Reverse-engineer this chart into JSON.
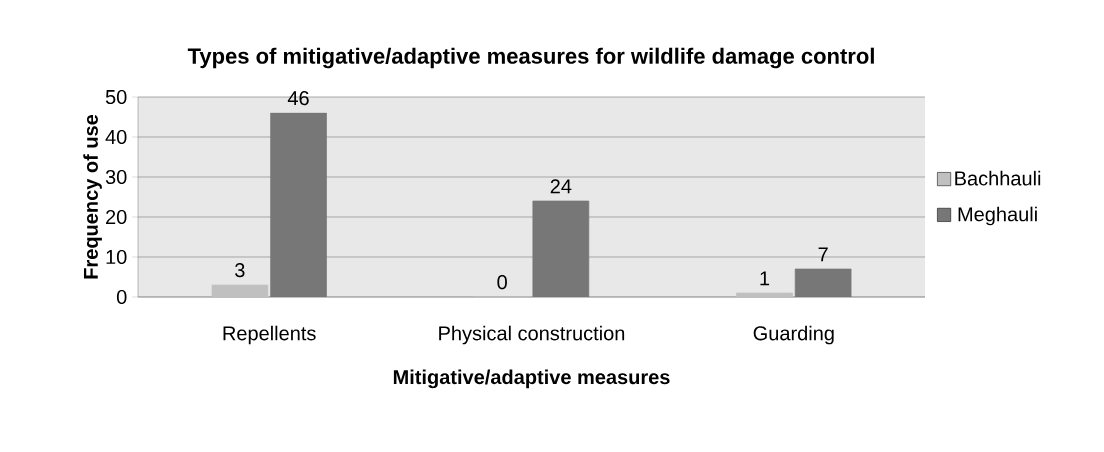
{
  "chart_data": {
    "type": "bar",
    "title": "Types of mitigative/adaptive measures for wildlife damage control",
    "xlabel": "Mitigative/adaptive measures",
    "ylabel": "Frequency of use",
    "categories": [
      "Repellents",
      "Physical construction",
      "Guarding"
    ],
    "series": [
      {
        "name": "Bachhauli",
        "color": "#c0c0c0",
        "values": [
          3,
          0,
          1
        ]
      },
      {
        "name": "Meghauli",
        "color": "#777777",
        "values": [
          46,
          24,
          7
        ]
      }
    ],
    "ylim": [
      0,
      50
    ],
    "yticks": [
      0,
      10,
      20,
      30,
      40,
      50
    ],
    "grid": "y",
    "legend": "right",
    "data_labels": true
  }
}
